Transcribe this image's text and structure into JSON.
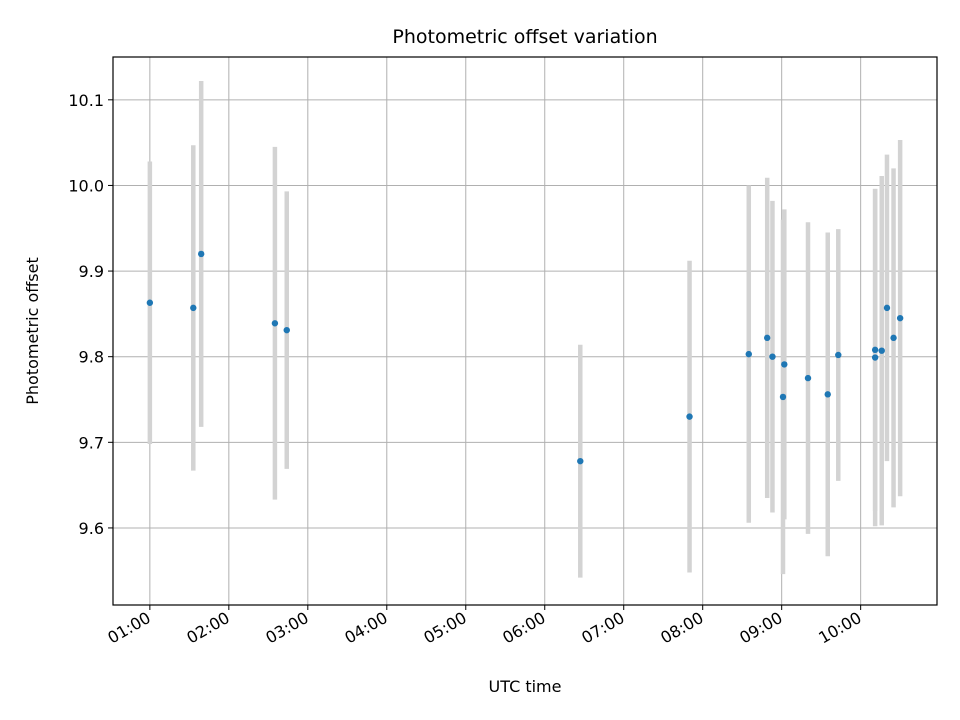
{
  "chart_data": {
    "type": "scatter",
    "title": "Photometric offset variation",
    "xlabel": "UTC time",
    "ylabel": "Photometric offset",
    "x_ticks": [
      "01:00",
      "02:00",
      "03:00",
      "04:00",
      "05:00",
      "06:00",
      "07:00",
      "08:00",
      "09:00",
      "10:00"
    ],
    "y_ticks": [
      "9.6",
      "9.7",
      "9.8",
      "9.9",
      "10.0",
      "10.1"
    ],
    "xlim": [
      "00:32",
      "10:58"
    ],
    "ylim": [
      9.51,
      10.15
    ],
    "grid": true,
    "colors": {
      "points": "#1f77b4",
      "errorbars": "#d3d3d3",
      "grid": "#b0b0b0"
    },
    "series": [
      {
        "points": [
          {
            "x": "01:00",
            "y": 9.863,
            "err": 0.165
          },
          {
            "x": "01:33",
            "y": 9.857,
            "err": 0.19
          },
          {
            "x": "01:39",
            "y": 9.92,
            "err": 0.202
          },
          {
            "x": "02:35",
            "y": 9.839,
            "err": 0.206
          },
          {
            "x": "02:44",
            "y": 9.831,
            "err": 0.162
          },
          {
            "x": "06:27",
            "y": 9.678,
            "err": 0.136
          },
          {
            "x": "07:50",
            "y": 9.73,
            "err": 0.182
          },
          {
            "x": "08:35",
            "y": 9.803,
            "err": 0.197
          },
          {
            "x": "08:49",
            "y": 9.822,
            "err": 0.187
          },
          {
            "x": "08:53",
            "y": 9.8,
            "err": 0.182
          },
          {
            "x": "09:01",
            "y": 9.753,
            "err": 0.207
          },
          {
            "x": "09:02",
            "y": 9.791,
            "err": 0.181
          },
          {
            "x": "09:20",
            "y": 9.775,
            "err": 0.182
          },
          {
            "x": "09:35",
            "y": 9.756,
            "err": 0.189
          },
          {
            "x": "09:43",
            "y": 9.802,
            "err": 0.147
          },
          {
            "x": "10:11",
            "y": 9.799,
            "err": 0.197
          },
          {
            "x": "10:11",
            "y": 9.808,
            "err": 0.188
          },
          {
            "x": "10:16",
            "y": 9.807,
            "err": 0.204
          },
          {
            "x": "10:20",
            "y": 9.857,
            "err": 0.179
          },
          {
            "x": "10:25",
            "y": 9.822,
            "err": 0.198
          },
          {
            "x": "10:30",
            "y": 9.845,
            "err": 0.208
          }
        ]
      }
    ]
  }
}
